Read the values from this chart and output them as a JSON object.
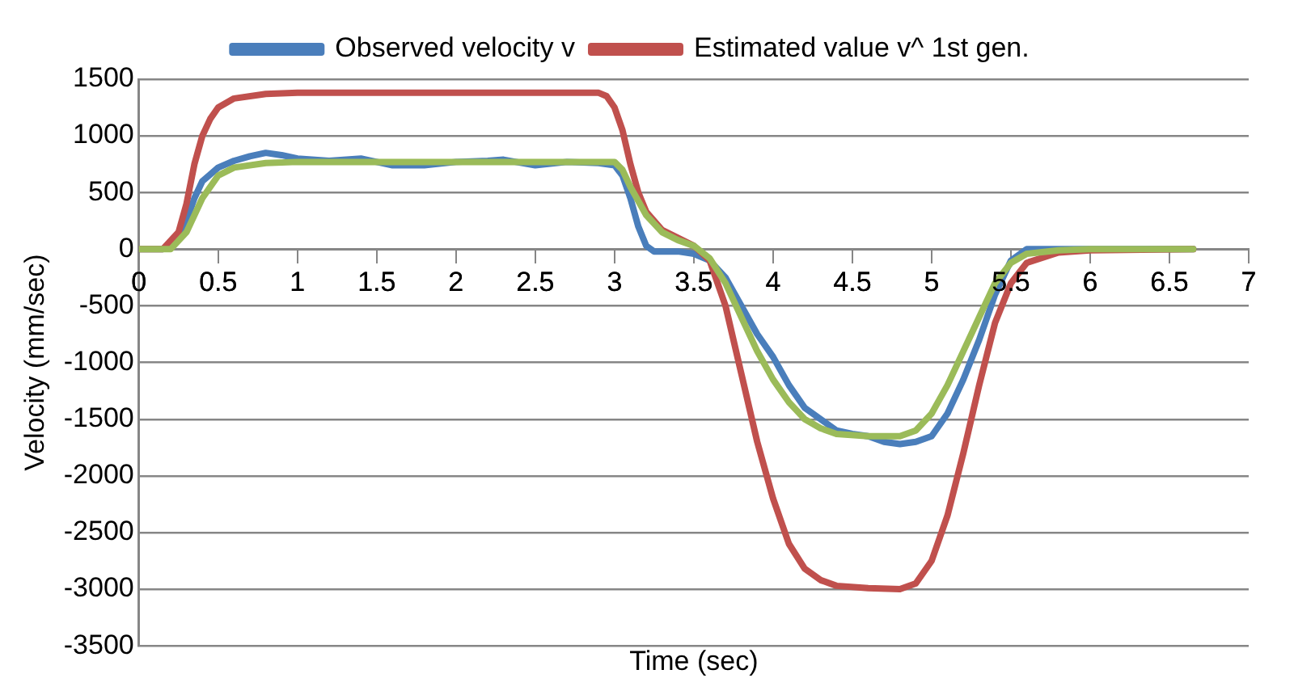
{
  "chart_data": {
    "type": "line",
    "xlabel": "Time (sec)",
    "ylabel": "Velocity (mm/sec)",
    "xlim": [
      0,
      7
    ],
    "xticks": [
      0,
      0.5,
      1,
      1.5,
      2,
      2.5,
      3,
      3.5,
      4,
      4.5,
      5,
      5.5,
      6,
      6.5,
      7
    ],
    "ylim": [
      -3500,
      1500
    ],
    "yticks": [
      -3500,
      -3000,
      -2500,
      -2000,
      -1500,
      -1000,
      -500,
      0,
      500,
      1000,
      1500
    ],
    "grid": "y",
    "legend": "top",
    "marker": "none",
    "line_style": "solid",
    "series": [
      {
        "name": "Observed velocity v",
        "color": "#4a7ebb",
        "x": [
          0,
          0.15,
          0.25,
          0.3,
          0.35,
          0.4,
          0.5,
          0.6,
          0.7,
          0.8,
          0.9,
          1.0,
          1.2,
          1.4,
          1.6,
          1.8,
          2.0,
          2.2,
          2.3,
          2.5,
          2.7,
          2.9,
          3.0,
          3.05,
          3.1,
          3.15,
          3.2,
          3.25,
          3.4,
          3.5,
          3.6,
          3.7,
          3.8,
          3.9,
          4.0,
          4.1,
          4.2,
          4.3,
          4.4,
          4.5,
          4.6,
          4.7,
          4.8,
          4.9,
          5.0,
          5.1,
          5.2,
          5.3,
          5.4,
          5.5,
          5.6,
          5.8,
          6.0,
          6.65
        ],
        "values": [
          0,
          0,
          100,
          250,
          450,
          600,
          720,
          780,
          820,
          850,
          830,
          800,
          780,
          800,
          740,
          740,
          770,
          780,
          790,
          740,
          770,
          760,
          740,
          650,
          450,
          200,
          30,
          -20,
          -20,
          -40,
          -100,
          -250,
          -500,
          -750,
          -950,
          -1200,
          -1400,
          -1500,
          -1600,
          -1630,
          -1650,
          -1700,
          -1720,
          -1700,
          -1650,
          -1450,
          -1150,
          -800,
          -400,
          -100,
          0,
          0,
          0,
          0
        ]
      },
      {
        "name": "Estimated value v^ 1st gen.",
        "color": "#c0504d",
        "x": [
          0,
          0.15,
          0.25,
          0.3,
          0.35,
          0.4,
          0.45,
          0.5,
          0.6,
          0.8,
          1.0,
          2.9,
          2.95,
          3.0,
          3.05,
          3.1,
          3.15,
          3.2,
          3.3,
          3.4,
          3.5,
          3.6,
          3.7,
          3.8,
          3.9,
          4.0,
          4.1,
          4.2,
          4.3,
          4.4,
          4.6,
          4.8,
          4.9,
          5.0,
          5.1,
          5.2,
          5.3,
          5.4,
          5.5,
          5.6,
          5.8,
          6.0,
          6.65
        ],
        "values": [
          0,
          0,
          150,
          400,
          750,
          1000,
          1150,
          1250,
          1330,
          1370,
          1380,
          1380,
          1350,
          1250,
          1050,
          750,
          500,
          330,
          170,
          100,
          30,
          -100,
          -500,
          -1100,
          -1700,
          -2200,
          -2600,
          -2820,
          -2920,
          -2970,
          -2990,
          -3000,
          -2950,
          -2750,
          -2350,
          -1800,
          -1200,
          -650,
          -300,
          -120,
          -30,
          -10,
          0
        ]
      },
      {
        "color": "#9bbb59",
        "x": [
          0,
          0.2,
          0.3,
          0.4,
          0.5,
          0.6,
          0.8,
          1.0,
          3.0,
          3.05,
          3.1,
          3.2,
          3.3,
          3.4,
          3.5,
          3.6,
          3.7,
          3.8,
          3.9,
          4.0,
          4.1,
          4.2,
          4.3,
          4.4,
          4.6,
          4.8,
          4.9,
          5.0,
          5.1,
          5.2,
          5.3,
          5.4,
          5.5,
          5.6,
          5.8,
          6.0,
          6.65
        ],
        "values": [
          0,
          0,
          150,
          450,
          650,
          720,
          760,
          770,
          770,
          700,
          550,
          300,
          150,
          80,
          30,
          -80,
          -300,
          -600,
          -900,
          -1150,
          -1350,
          -1500,
          -1580,
          -1630,
          -1650,
          -1650,
          -1600,
          -1450,
          -1200,
          -900,
          -600,
          -300,
          -120,
          -40,
          -10,
          0,
          0
        ]
      }
    ]
  }
}
